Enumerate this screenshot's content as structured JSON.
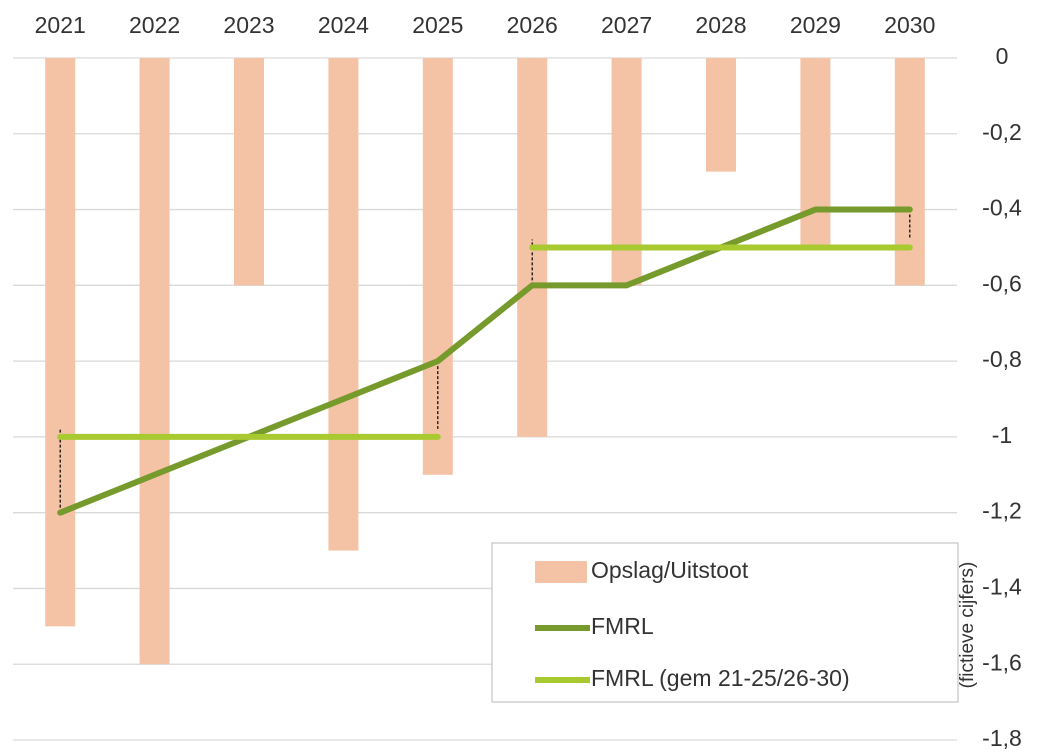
{
  "chart_data": {
    "type": "bar_line",
    "categories": [
      "2021",
      "2022",
      "2023",
      "2024",
      "2025",
      "2026",
      "2027",
      "2028",
      "2029",
      "2030"
    ],
    "series": [
      {
        "name": "Opslag/Uitstoot",
        "type": "bar",
        "color": "#f4c3a6",
        "values": [
          -1.5,
          -1.6,
          -0.6,
          -1.3,
          -1.1,
          -1.0,
          -0.6,
          -0.3,
          -0.5,
          -0.6
        ]
      },
      {
        "name": "FMRL",
        "type": "line",
        "color": "#779a2c",
        "values": [
          -1.2,
          -1.1,
          -1.0,
          -0.9,
          -0.8,
          -0.6,
          -0.6,
          -0.5,
          -0.4,
          -0.4
        ]
      },
      {
        "name": "FMRL (gem 21-25/26-30)",
        "type": "line",
        "color": "#a8c92f",
        "values": [
          -1.0,
          -1.0,
          -1.0,
          -1.0,
          -1.0,
          -0.5,
          -0.5,
          -0.5,
          -0.5,
          -0.5
        ]
      }
    ],
    "ylabel": "(fictieve cijfers)",
    "ylim": [
      -1.8,
      0
    ],
    "yticks": [
      0,
      {
        "value": -0.2,
        "label": "-0,2"
      },
      {
        "value": -0.4,
        "label": "-0,4"
      },
      {
        "value": -0.6,
        "label": "-0,6"
      },
      {
        "value": -0.8,
        "label": "-0,8"
      },
      -1,
      {
        "value": -1.2,
        "label": "-1,2"
      },
      {
        "value": -1.4,
        "label": "-1,4"
      },
      {
        "value": -1.6,
        "label": "-1,6"
      },
      {
        "value": -1.8,
        "label": "-1,8"
      }
    ],
    "grid": true
  }
}
